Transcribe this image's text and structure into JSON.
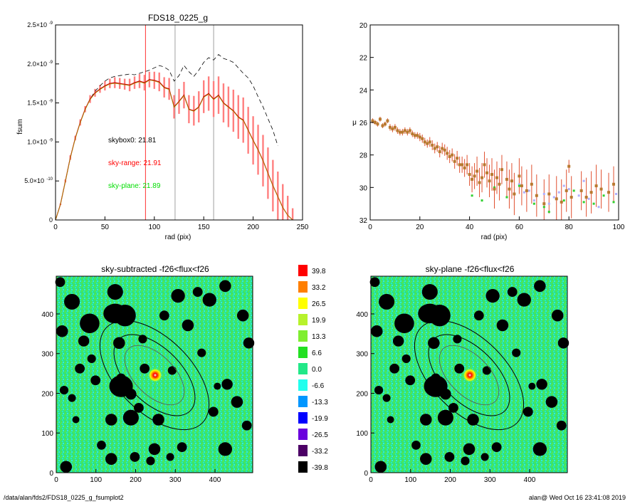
{
  "chart_data": [
    {
      "type": "line",
      "title": "FDS18_0225_g",
      "xlabel": "rad (pix)",
      "ylabel": "fsum",
      "xlim": [
        0,
        250
      ],
      "ylim": [
        0,
        2.5e-09
      ],
      "x_ticks": [
        "0",
        "50",
        "100",
        "150",
        "200",
        "250"
      ],
      "y_ticks": [
        {
          "value": 0,
          "label": "0",
          "exp": ""
        },
        {
          "value": 5e-10,
          "label": "5.0×10",
          "exp": "-10"
        },
        {
          "value": 1e-09,
          "label": "1.0×10",
          "exp": "-9"
        },
        {
          "value": 1.5e-09,
          "label": "1.5×10",
          "exp": "-9"
        },
        {
          "value": 2e-09,
          "label": "2.0×10",
          "exp": "-9"
        },
        {
          "value": 2.5e-09,
          "label": "2.5×10",
          "exp": "-9"
        }
      ],
      "vlines": [
        {
          "x": 91,
          "color": "#ff0000"
        },
        {
          "x": 121,
          "color": "#888888"
        },
        {
          "x": 160,
          "color": "#888888"
        }
      ],
      "annotations": [
        {
          "text": "skybox0: 21.81",
          "color": "#000000"
        },
        {
          "text": "sky-range: 21.91",
          "color": "#ff0000"
        },
        {
          "text": "sky-plane: 21.89",
          "color": "#00dd00"
        }
      ],
      "series": [
        {
          "style": "dashed",
          "color": "#000000",
          "x": [
            0,
            5,
            10,
            15,
            20,
            25,
            30,
            35,
            40,
            45,
            50,
            55,
            60,
            65,
            70,
            75,
            80,
            85,
            90,
            95,
            100,
            105,
            110,
            115,
            120,
            125,
            130,
            135,
            140,
            145,
            150,
            155,
            160,
            165,
            170,
            175,
            180,
            185,
            190,
            195,
            200,
            205,
            210,
            215,
            220,
            225
          ],
          "y": [
            0,
            2e-10,
            5e-10,
            8e-10,
            1.05e-09,
            1.25e-09,
            1.42e-09,
            1.55e-09,
            1.65e-09,
            1.72e-09,
            1.78e-09,
            1.82e-09,
            1.84e-09,
            1.85e-09,
            1.86e-09,
            1.87e-09,
            1.86e-09,
            1.88e-09,
            1.9e-09,
            1.92e-09,
            1.95e-09,
            1.98e-09,
            1.96e-09,
            1.92e-09,
            1.78e-09,
            1.85e-09,
            1.98e-09,
            1.9e-09,
            1.84e-09,
            1.92e-09,
            2.02e-09,
            2.08e-09,
            2.05e-09,
            2.12e-09,
            2.07e-09,
            2.05e-09,
            2.02e-09,
            1.95e-09,
            1.88e-09,
            1.82e-09,
            1.72e-09,
            1.58e-09,
            1.45e-09,
            1.3e-09,
            1.15e-09,
            9.5e-10
          ]
        },
        {
          "style": "solid",
          "color": "#cc0000",
          "error_color": "#ff7f7f",
          "x": [
            0,
            5,
            10,
            15,
            20,
            25,
            30,
            35,
            40,
            45,
            50,
            55,
            60,
            65,
            70,
            75,
            80,
            85,
            90,
            95,
            100,
            105,
            110,
            115,
            120,
            125,
            130,
            135,
            140,
            145,
            150,
            155,
            160,
            165,
            170,
            175,
            180,
            185,
            190,
            195,
            200,
            205,
            210,
            215,
            220,
            225,
            230,
            235,
            240
          ],
          "y": [
            0,
            2e-10,
            5e-10,
            8e-10,
            1.05e-09,
            1.25e-09,
            1.42e-09,
            1.55e-09,
            1.63e-09,
            1.68e-09,
            1.72e-09,
            1.75e-09,
            1.76e-09,
            1.75e-09,
            1.74e-09,
            1.73e-09,
            1.76e-09,
            1.78e-09,
            1.76e-09,
            1.8e-09,
            1.79e-09,
            1.77e-09,
            1.7e-09,
            1.68e-09,
            1.45e-09,
            1.52e-09,
            1.6e-09,
            1.42e-09,
            1.4e-09,
            1.45e-09,
            1.58e-09,
            1.62e-09,
            1.55e-09,
            1.6e-09,
            1.5e-09,
            1.45e-09,
            1.4e-09,
            1.32e-09,
            1.28e-09,
            1.15e-09,
            1.02e-09,
            9e-10,
            7.6e-10,
            6e-10,
            4.4e-10,
            3e-10,
            1.6e-10,
            6e-11,
            0
          ],
          "err": [
            0,
            1e-11,
            2e-11,
            3e-11,
            3e-11,
            4e-11,
            4e-11,
            5e-11,
            5e-11,
            5e-11,
            6e-11,
            6e-11,
            7e-11,
            7e-11,
            7e-11,
            8e-11,
            8e-11,
            9e-11,
            1e-10,
            1e-10,
            1.1e-10,
            1.2e-10,
            1.3e-10,
            1.4e-10,
            1.5e-10,
            1.6e-10,
            1.7e-10,
            1.8e-10,
            1.9e-10,
            2e-10,
            2.1e-10,
            2.2e-10,
            2.3e-10,
            2.4e-10,
            2.5e-10,
            2.6e-10,
            2.7e-10,
            2.8e-10,
            2.9e-10,
            3e-10,
            3.1e-10,
            3.2e-10,
            3.3e-10,
            3.3e-10,
            3.3e-10,
            3.2e-10,
            3e-10,
            2.5e-10,
            1.5e-10
          ]
        }
      ]
    },
    {
      "type": "scatter",
      "title": "",
      "xlabel": "rad (pix)",
      "ylabel": "μ",
      "xlim": [
        0,
        100
      ],
      "ylim": [
        32,
        20
      ],
      "x_ticks": [
        "0",
        "20",
        "40",
        "60",
        "80",
        "100"
      ],
      "y_ticks": [
        "20",
        "22",
        "24",
        "26",
        "28",
        "30",
        "32"
      ],
      "series": [
        {
          "color": "#b87a30",
          "x": [
            1,
            2,
            3,
            4,
            5,
            6,
            7,
            8,
            9,
            10,
            11,
            12,
            13,
            14,
            15,
            16,
            17,
            18,
            19,
            20,
            21,
            22,
            23,
            24,
            25,
            26,
            27,
            28,
            29,
            30,
            31,
            32,
            33,
            34,
            35,
            36,
            37,
            38,
            39,
            40,
            41,
            42,
            43,
            44,
            45,
            46,
            47,
            48,
            49,
            50,
            51,
            52,
            53,
            55,
            56,
            57,
            58,
            60,
            61,
            63,
            65,
            67,
            70,
            72,
            75,
            77,
            79,
            80,
            81,
            85,
            87,
            89,
            91,
            93,
            96,
            98
          ],
          "y": [
            25.9,
            26.0,
            26.1,
            25.8,
            26.2,
            26.1,
            25.9,
            26.3,
            26.4,
            26.3,
            26.5,
            26.6,
            26.6,
            26.5,
            26.6,
            26.5,
            26.7,
            26.8,
            26.8,
            26.9,
            27.0,
            27.2,
            27.3,
            27.2,
            27.4,
            27.6,
            27.5,
            27.8,
            27.6,
            27.7,
            27.9,
            28.1,
            28.0,
            28.4,
            28.2,
            28.6,
            28.6,
            28.8,
            28.6,
            29.2,
            29.5,
            29.3,
            29.0,
            29.7,
            29.4,
            28.6,
            29.1,
            29.6,
            29.2,
            30.1,
            29.4,
            29.8,
            28.9,
            29.5,
            30.1,
            29.6,
            30.4,
            29.3,
            29.9,
            30.2,
            29.8,
            30.5,
            31.0,
            30.4,
            30.7,
            30.9,
            30.2,
            28.7,
            30.6,
            30.2,
            30.6,
            30.3,
            29.9,
            30.1,
            30.3,
            29.8
          ],
          "err": [
            0.15,
            0.15,
            0.15,
            0.15,
            0.15,
            0.15,
            0.15,
            0.2,
            0.2,
            0.2,
            0.2,
            0.2,
            0.2,
            0.2,
            0.2,
            0.2,
            0.2,
            0.2,
            0.2,
            0.25,
            0.25,
            0.25,
            0.25,
            0.3,
            0.3,
            0.3,
            0.3,
            0.35,
            0.35,
            0.35,
            0.4,
            0.4,
            0.4,
            0.45,
            0.45,
            0.5,
            0.5,
            0.55,
            0.6,
            0.7,
            0.8,
            0.8,
            0.9,
            0.9,
            0.9,
            0.8,
            0.9,
            1.0,
            1.0,
            1.2,
            1.0,
            1.0,
            0.9,
            1.1,
            1.2,
            1.1,
            1.3,
            1.1,
            1.2,
            1.3,
            1.2,
            1.3,
            1.5,
            1.2,
            1.4,
            1.4,
            1.3,
            0.4,
            1.3,
            1.2,
            1.2,
            1.3,
            1.3,
            1.2,
            1.2,
            1.1
          ]
        },
        {
          "color": "#b0b0ff",
          "x": [
            60,
            62,
            64,
            66,
            70,
            72,
            74,
            76,
            78,
            80,
            84,
            86,
            88,
            92,
            96,
            99
          ],
          "y": [
            29.8,
            30.3,
            30.2,
            30.8,
            30.4,
            31.0,
            30.6,
            30.3,
            29.9,
            30.1,
            30.5,
            29.6,
            30.7,
            31.2,
            30.3,
            30.4
          ]
        },
        {
          "color": "#30d030",
          "x": [
            41,
            45,
            50,
            55,
            60,
            66,
            70,
            72,
            78,
            82,
            86,
            90,
            94,
            98
          ],
          "y": [
            30.5,
            30.8,
            30.0,
            30.6,
            29.9,
            31.0,
            31.2,
            31.5,
            30.8,
            30.2,
            30.9,
            31.0,
            30.5,
            30.9
          ]
        }
      ]
    },
    {
      "type": "heatmap",
      "title": "sky-subtracted -f26<flux<f26",
      "x_ticks": [
        "0",
        "100",
        "200",
        "300",
        "400"
      ],
      "y_ticks": [
        "0",
        "100",
        "200",
        "300",
        "400"
      ],
      "xlim": [
        0,
        495
      ],
      "ylim": [
        0,
        495
      ]
    },
    {
      "type": "heatmap",
      "title": "sky-plane -f26<flux<f26",
      "x_ticks": [
        "0",
        "100",
        "200",
        "300",
        "400"
      ],
      "y_ticks": [
        "0",
        "100",
        "200",
        "300",
        "400"
      ],
      "xlim": [
        0,
        495
      ],
      "ylim": [
        0,
        495
      ]
    }
  ],
  "colorbar": [
    {
      "label": "39.8",
      "color": "#ff0000"
    },
    {
      "label": "33.2",
      "color": "#ff7f00"
    },
    {
      "label": "26.5",
      "color": "#ffff00"
    },
    {
      "label": "19.9",
      "color": "#b7f22c"
    },
    {
      "label": "13.3",
      "color": "#7fee30"
    },
    {
      "label": "6.6",
      "color": "#22e022"
    },
    {
      "label": "0.0",
      "color": "#22e888"
    },
    {
      "label": "-6.6",
      "color": "#22ffee"
    },
    {
      "label": "-13.3",
      "color": "#0096ff"
    },
    {
      "label": "-19.9",
      "color": "#0000ff"
    },
    {
      "label": "-26.5",
      "color": "#6a00dd"
    },
    {
      "label": "-33.2",
      "color": "#4c0066"
    },
    {
      "label": "-39.8",
      "color": "#000000"
    }
  ],
  "footer": {
    "left": "/data/alan/fds2/FDS18_0225_g_fsumplot2",
    "right": "alan@  Wed Oct 16 23:41:08 2019"
  }
}
